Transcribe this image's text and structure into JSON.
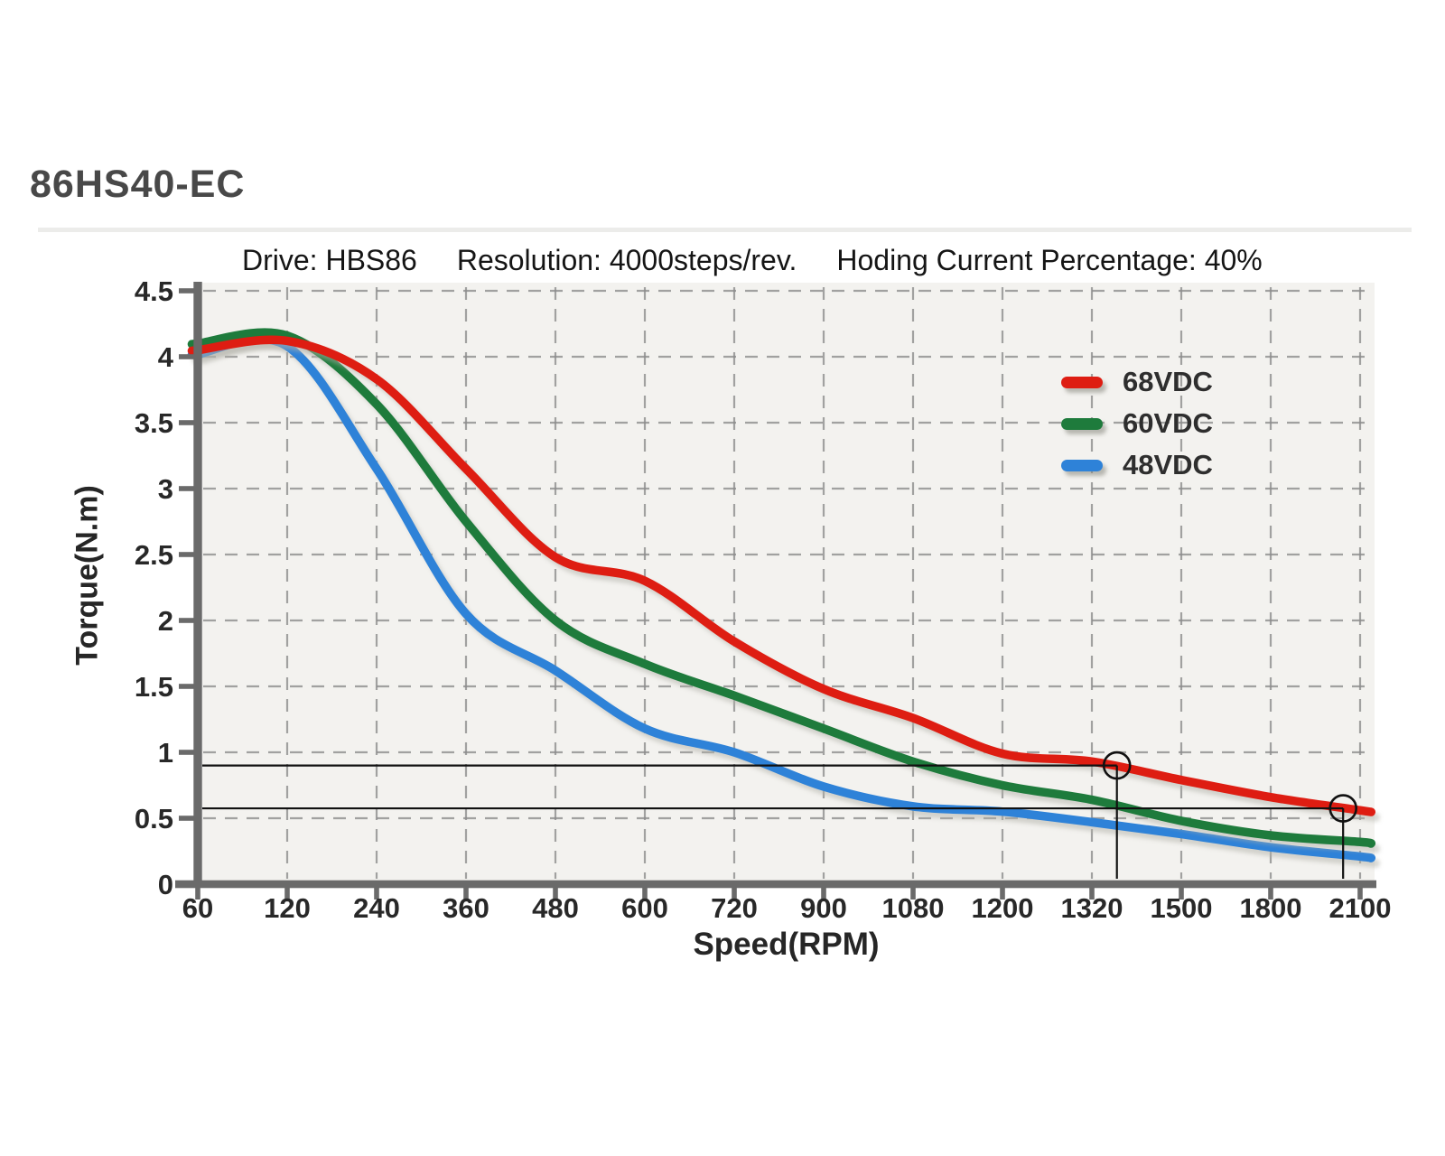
{
  "page": {
    "title": "86HS40-EC"
  },
  "chart": {
    "subtitle": {
      "drive": "Drive: HBS86",
      "resolution": "Resolution: 4000steps/rev.",
      "holding": "Hoding Current Percentage: 40%"
    },
    "xlabel": "Speed(RPM)",
    "ylabel": "Torque(N.m)"
  },
  "chart_data": {
    "type": "line",
    "title": "Drive: HBS86  Resolution: 4000steps/rev.  Hoding Current Percentage: 40%",
    "xlabel": "Speed(RPM)",
    "ylabel": "Torque(N.m)",
    "x_axis": {
      "scale": "categorical-equal-spacing",
      "categories": [
        60,
        120,
        240,
        360,
        480,
        600,
        720,
        900,
        1080,
        1200,
        1320,
        1500,
        1800,
        2100
      ]
    },
    "y_axis": {
      "ticks": [
        0,
        0.5,
        1,
        1.5,
        2,
        2.5,
        3,
        3.5,
        4,
        4.5
      ],
      "range": [
        0,
        4.5
      ]
    },
    "grid": {
      "style": "dashed",
      "color": "#8d8d8d",
      "both_directions": true
    },
    "legend": {
      "position": "upper-right-inside"
    },
    "series": [
      {
        "name": "68VDC",
        "color": "#de1d12",
        "values": [
          4.05,
          4.12,
          3.83,
          3.15,
          2.48,
          2.3,
          1.84,
          1.48,
          1.26,
          0.99,
          0.93,
          0.79,
          0.66,
          0.56
        ]
      },
      {
        "name": "60VDC",
        "color": "#1e7b3c",
        "values": [
          4.1,
          4.16,
          3.64,
          2.75,
          2.0,
          1.67,
          1.43,
          1.18,
          0.93,
          0.75,
          0.64,
          0.48,
          0.37,
          0.32
        ]
      },
      {
        "name": "48VDC",
        "color": "#2e82d8",
        "values": [
          4.02,
          4.08,
          3.15,
          2.05,
          1.62,
          1.18,
          1.0,
          0.74,
          0.59,
          0.55,
          0.47,
          0.38,
          0.28,
          0.21
        ]
      }
    ],
    "annotations": [
      {
        "type": "circled_point_with_guides",
        "on_series": "68VDC",
        "torque": 0.9,
        "x_index_position": 10.28
      },
      {
        "type": "circled_point_with_guides",
        "on_series": "68VDC",
        "torque": 0.575,
        "x_index_position": 12.81
      }
    ]
  },
  "colors": {
    "plot_background": "#f3f2ef",
    "axis": "#6a6a6a",
    "gridline": "#8d8d8d",
    "annotation": "#111111",
    "title_text": "#484848",
    "tick_text": "#282828"
  }
}
